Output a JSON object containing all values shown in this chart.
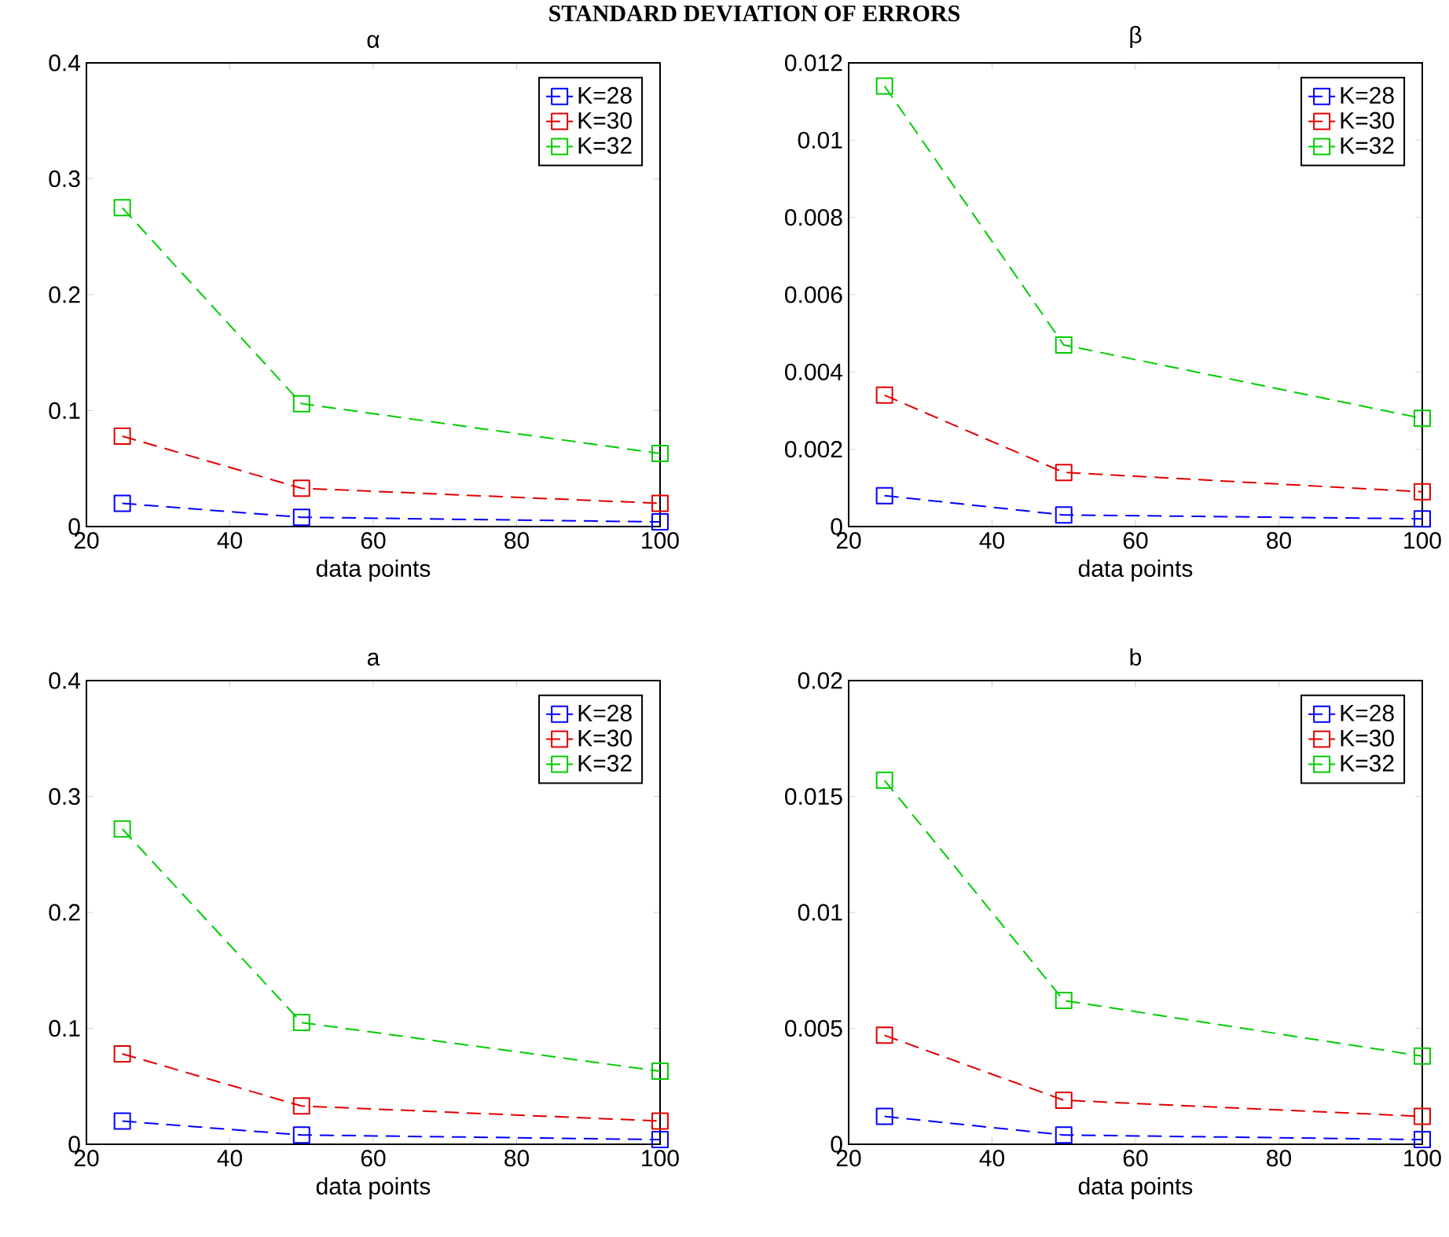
{
  "chart_data": [
    {
      "type": "line",
      "title": "α",
      "xlabel": "data points",
      "annotations": [
        "STANDARD DEVIATION OF ERRORS"
      ],
      "x": [
        25,
        50,
        100
      ],
      "xlim": [
        20,
        100
      ],
      "xticks": [
        20,
        40,
        60,
        80,
        100
      ],
      "ylim": [
        0,
        0.4
      ],
      "yticks": [
        0,
        0.1,
        0.2,
        0.3,
        0.4
      ],
      "legend": "top right",
      "marker": "square",
      "line_style": "dashed",
      "series": [
        {
          "name": "K=28",
          "color": "#0000ff",
          "values": [
            0.02,
            0.008,
            0.004
          ]
        },
        {
          "name": "K=30",
          "color": "#e00000",
          "values": [
            0.078,
            0.033,
            0.02
          ]
        },
        {
          "name": "K=32",
          "color": "#00cc00",
          "values": [
            0.275,
            0.106,
            0.063
          ]
        }
      ]
    },
    {
      "type": "line",
      "title": "β",
      "xlabel": "data points",
      "x": [
        25,
        50,
        100
      ],
      "xlim": [
        20,
        100
      ],
      "xticks": [
        20,
        40,
        60,
        80,
        100
      ],
      "ylim": [
        0,
        0.012
      ],
      "yticks": [
        0,
        0.002,
        0.004,
        0.006,
        0.008,
        0.01,
        0.012
      ],
      "legend": "top right",
      "marker": "square",
      "line_style": "dashed",
      "series": [
        {
          "name": "K=28",
          "color": "#0000ff",
          "values": [
            0.0008,
            0.0003,
            0.0002
          ]
        },
        {
          "name": "K=30",
          "color": "#e00000",
          "values": [
            0.0034,
            0.0014,
            0.0009
          ]
        },
        {
          "name": "K=32",
          "color": "#00cc00",
          "values": [
            0.0114,
            0.0047,
            0.0028
          ]
        }
      ]
    },
    {
      "type": "line",
      "title": "a",
      "xlabel": "data points",
      "x": [
        25,
        50,
        100
      ],
      "xlim": [
        20,
        100
      ],
      "xticks": [
        20,
        40,
        60,
        80,
        100
      ],
      "ylim": [
        0,
        0.4
      ],
      "yticks": [
        0,
        0.1,
        0.2,
        0.3,
        0.4
      ],
      "legend": "top right",
      "marker": "square",
      "line_style": "dashed",
      "series": [
        {
          "name": "K=28",
          "color": "#0000ff",
          "values": [
            0.02,
            0.008,
            0.004
          ]
        },
        {
          "name": "K=30",
          "color": "#e00000",
          "values": [
            0.078,
            0.033,
            0.02
          ]
        },
        {
          "name": "K=32",
          "color": "#00cc00",
          "values": [
            0.272,
            0.105,
            0.063
          ]
        }
      ]
    },
    {
      "type": "line",
      "title": "b",
      "xlabel": "data points",
      "x": [
        25,
        50,
        100
      ],
      "xlim": [
        20,
        100
      ],
      "xticks": [
        20,
        40,
        60,
        80,
        100
      ],
      "ylim": [
        0,
        0.02
      ],
      "yticks": [
        0,
        0.005,
        0.01,
        0.015,
        0.02
      ],
      "legend": "top right",
      "marker": "square",
      "line_style": "dashed",
      "series": [
        {
          "name": "K=28",
          "color": "#0000ff",
          "values": [
            0.0012,
            0.0004,
            0.0002
          ]
        },
        {
          "name": "K=30",
          "color": "#e00000",
          "values": [
            0.0047,
            0.0019,
            0.0012
          ]
        },
        {
          "name": "K=32",
          "color": "#00cc00",
          "values": [
            0.0157,
            0.0062,
            0.0038
          ]
        }
      ]
    }
  ]
}
